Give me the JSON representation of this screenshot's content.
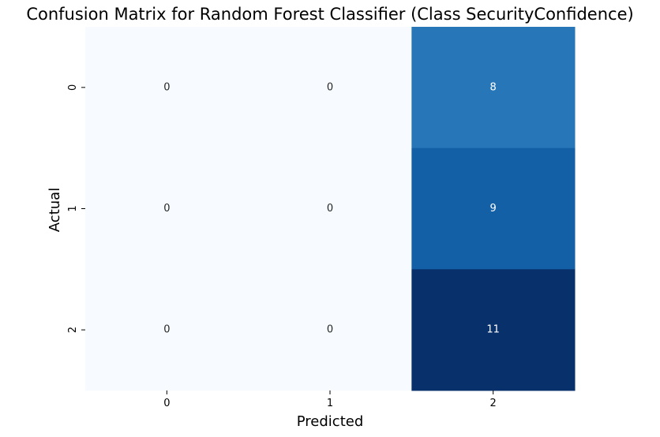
{
  "chart_data": {
    "type": "heatmap",
    "title": "Confusion Matrix for Random Forest Classifier (Class SecurityConfidence)",
    "xlabel": "Predicted",
    "ylabel": "Actual",
    "x_categories": [
      "0",
      "1",
      "2"
    ],
    "y_categories": [
      "0",
      "1",
      "2"
    ],
    "values": [
      [
        0,
        0,
        8
      ],
      [
        0,
        0,
        9
      ],
      [
        0,
        0,
        11
      ]
    ],
    "colormap": "Blues",
    "colorbar": false,
    "annotations": true,
    "value_range": [
      0,
      11
    ]
  }
}
